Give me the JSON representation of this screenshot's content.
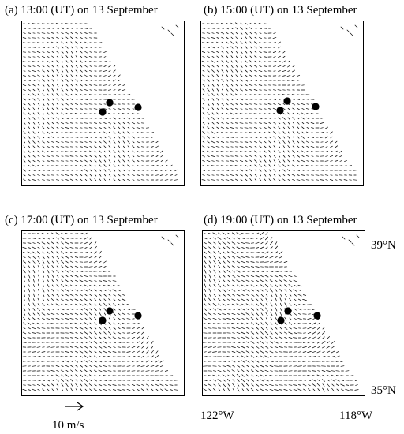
{
  "figure": {
    "panels": [
      {
        "title": "(a) 13:00 (UT) on 13 September"
      },
      {
        "title": "(b) 15:00 (UT) on 13 September"
      },
      {
        "title": "(c) 17:00 (UT) on 13 September"
      },
      {
        "title": "(d) 19:00 (UT) on 13 September"
      }
    ],
    "lat_labels": {
      "north": "39°N",
      "south": "35°N"
    },
    "lon_labels": {
      "west": "122°W",
      "east": "118°W"
    },
    "scale": {
      "label": "10 m/s",
      "icon": "reference-arrow"
    }
  },
  "colors": {
    "ink": "#000000",
    "background": "#ffffff"
  }
}
